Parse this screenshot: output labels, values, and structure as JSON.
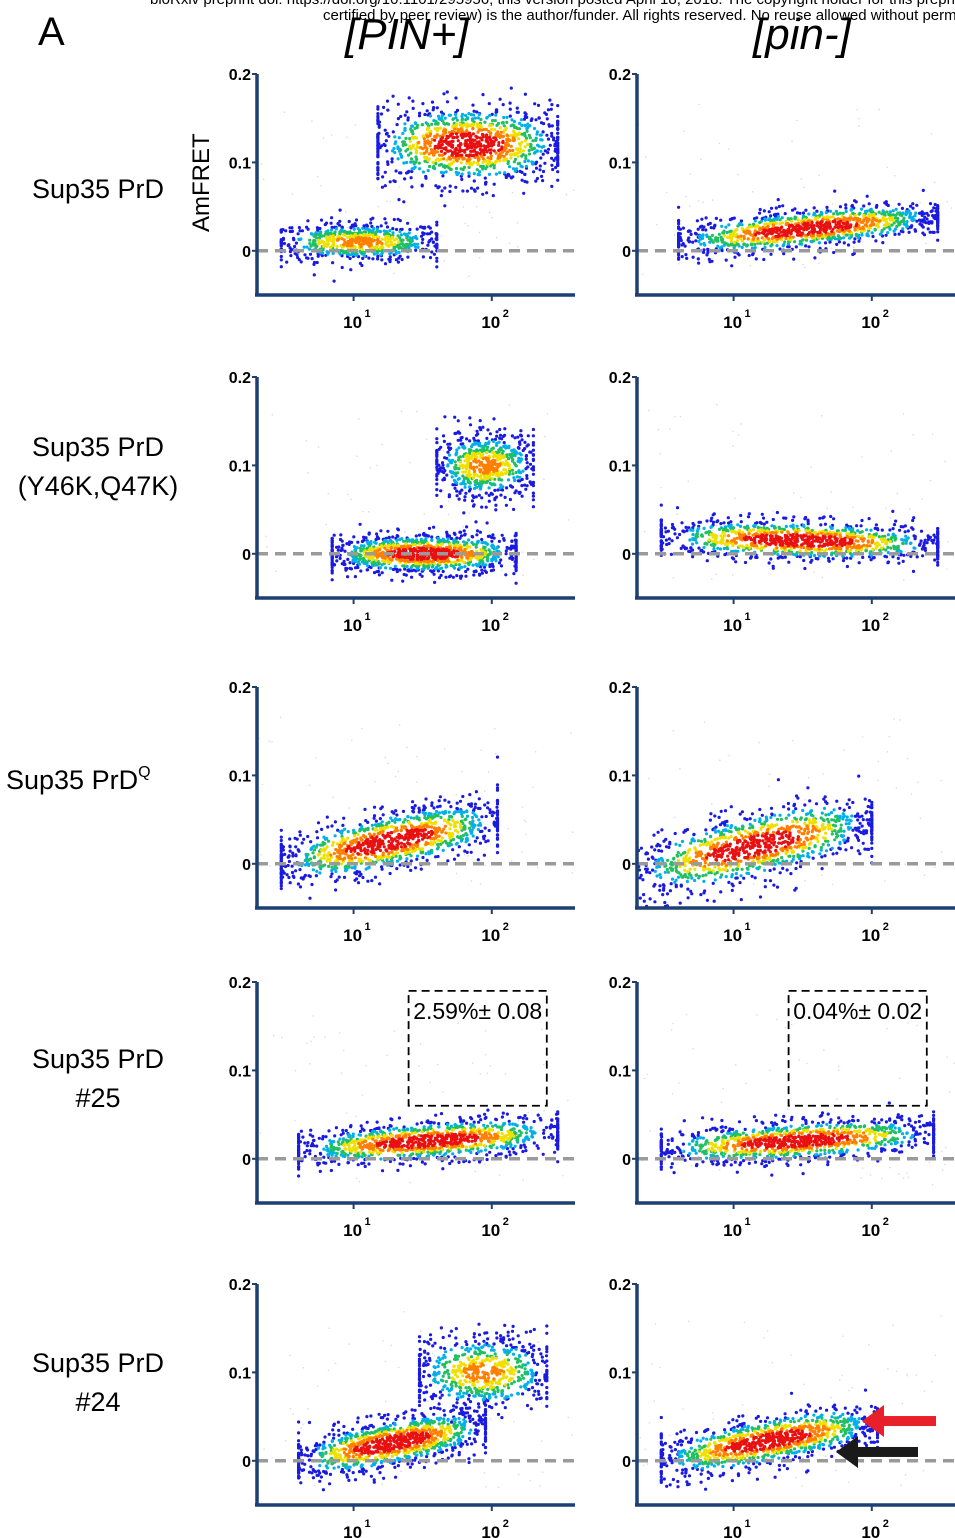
{
  "header": {
    "preprint_line1": "bioRxiv preprint doi: https://doi.org/10.1101/295956; this version posted April 18, 2018. The copyright holder for this preprint (which was not",
    "preprint_line2": "certified by peer review) is the author/funder. All rights reserved. No reuse allowed without permission."
  },
  "panel_letter": "A",
  "columns": [
    "[PIN+]",
    "[pin-]"
  ],
  "y_axis_label": "AmFRET",
  "rows": [
    {
      "label_lines": [
        "Sup35 PrD"
      ],
      "superscript": ""
    },
    {
      "label_lines": [
        "Sup35 PrD",
        "(Y46K,Q47K)"
      ],
      "superscript": ""
    },
    {
      "label_lines": [
        "Sup35 PrD"
      ],
      "superscript": "Q"
    },
    {
      "label_lines": [
        "Sup35 PrD",
        "#25"
      ],
      "superscript": ""
    },
    {
      "label_lines": [
        "Sup35 PrD",
        "#24"
      ],
      "superscript": ""
    }
  ],
  "colors": {
    "axis": "#1d3f73",
    "zero_line": "#9a9a9a",
    "density_scale": [
      "#d8d8f2",
      "#1a1ae0",
      "#00b0e8",
      "#20c060",
      "#f0e000",
      "#ff8000",
      "#e81010"
    ],
    "red_arrow": "#e8202a",
    "black_arrow": "#1a1a1a"
  },
  "chart_data": [
    {
      "type": "scatter",
      "row": 1,
      "column": "[PIN+]",
      "x_scale": "log",
      "xticks": [
        "10^1",
        "10^2"
      ],
      "yticks": [
        "0",
        "0.1",
        "0.2"
      ],
      "ylim": [
        -0.05,
        0.2
      ],
      "populations": [
        {
          "name": "",
          "x_range": [
            3,
            40
          ],
          "y_center": 0.01,
          "y_spread": 0.02,
          "density": "medium"
        },
        {
          "name": "",
          "x_range": [
            15,
            300
          ],
          "y_center": 0.12,
          "y_spread": 0.04,
          "density": "high"
        }
      ]
    },
    {
      "type": "scatter",
      "row": 1,
      "column": "[pin-]",
      "x_scale": "log",
      "xticks": [
        "10^1",
        "10^2"
      ],
      "yticks": [
        "0",
        "0.1",
        "0.2"
      ],
      "ylim": [
        -0.05,
        0.2
      ],
      "populations": [
        {
          "name": "",
          "x_range": [
            4,
            300
          ],
          "y_start": 0.01,
          "y_end": 0.04,
          "y_spread": 0.02,
          "density": "high"
        }
      ]
    },
    {
      "type": "scatter",
      "row": 2,
      "column": "[PIN+]",
      "x_scale": "log",
      "xticks": [
        "10^1",
        "10^2"
      ],
      "yticks": [
        "0",
        "0.1",
        "0.2"
      ],
      "ylim": [
        -0.05,
        0.2
      ],
      "populations": [
        {
          "name": "",
          "x_range": [
            7,
            150
          ],
          "y_center": 0.0,
          "y_spread": 0.02,
          "density": "high"
        },
        {
          "name": "",
          "x_range": [
            40,
            200
          ],
          "y_center": 0.1,
          "y_spread": 0.035,
          "density": "medium"
        }
      ]
    },
    {
      "type": "scatter",
      "row": 2,
      "column": "[pin-]",
      "x_scale": "log",
      "xticks": [
        "10^1",
        "10^2"
      ],
      "yticks": [
        "0",
        "0.1",
        "0.2"
      ],
      "ylim": [
        -0.05,
        0.2
      ],
      "populations": [
        {
          "name": "",
          "x_range": [
            3,
            300
          ],
          "y_start": 0.02,
          "y_end": 0.01,
          "y_spread": 0.02,
          "density": "high"
        }
      ]
    },
    {
      "type": "scatter",
      "row": 3,
      "column": "[PIN+]",
      "x_scale": "log",
      "xticks": [
        "10^1",
        "10^2"
      ],
      "yticks": [
        "0",
        "0.1",
        "0.2"
      ],
      "ylim": [
        -0.05,
        0.2
      ],
      "populations": [
        {
          "name": "",
          "x_range": [
            3,
            110
          ],
          "y_start": 0.0,
          "y_end": 0.05,
          "y_spread": 0.03,
          "density": "high"
        }
      ]
    },
    {
      "type": "scatter",
      "row": 3,
      "column": "[pin-]",
      "x_scale": "log",
      "xticks": [
        "10^1",
        "10^2"
      ],
      "yticks": [
        "0",
        "0.1",
        "0.2"
      ],
      "ylim": [
        -0.05,
        0.2
      ],
      "populations": [
        {
          "name": "",
          "x_range": [
            2,
            100
          ],
          "y_start": -0.01,
          "y_end": 0.05,
          "y_spread": 0.035,
          "density": "high"
        }
      ]
    },
    {
      "type": "scatter",
      "row": 4,
      "column": "[PIN+]",
      "x_scale": "log",
      "xticks": [
        "10^1",
        "10^2"
      ],
      "yticks": [
        "0",
        "0.1",
        "0.2"
      ],
      "ylim": [
        -0.05,
        0.2
      ],
      "annotation": "2.59%± 0.08",
      "gate": {
        "x": [
          25,
          250
        ],
        "y": [
          0.06,
          0.19
        ]
      },
      "populations": [
        {
          "name": "",
          "x_range": [
            4,
            300
          ],
          "y_start": 0.01,
          "y_end": 0.03,
          "y_spread": 0.02,
          "density": "high"
        }
      ]
    },
    {
      "type": "scatter",
      "row": 4,
      "column": "[pin-]",
      "x_scale": "log",
      "xticks": [
        "10^1",
        "10^2"
      ],
      "yticks": [
        "0",
        "0.1",
        "0.2"
      ],
      "ylim": [
        -0.05,
        0.2
      ],
      "annotation": "0.04%± 0.02",
      "gate": {
        "x": [
          25,
          250
        ],
        "y": [
          0.06,
          0.19
        ]
      },
      "populations": [
        {
          "name": "",
          "x_range": [
            3,
            280
          ],
          "y_start": 0.01,
          "y_end": 0.03,
          "y_spread": 0.02,
          "density": "high"
        }
      ]
    },
    {
      "type": "scatter",
      "row": 5,
      "column": "[PIN+]",
      "x_scale": "log",
      "xticks": [
        "10^1",
        "10^2"
      ],
      "yticks": [
        "0",
        "0.1",
        "0.2"
      ],
      "ylim": [
        -0.05,
        0.2
      ],
      "populations": [
        {
          "name": "",
          "x_range": [
            4,
            90
          ],
          "y_start": 0.0,
          "y_end": 0.04,
          "y_spread": 0.025,
          "density": "high"
        },
        {
          "name": "",
          "x_range": [
            30,
            250
          ],
          "y_center": 0.1,
          "y_spread": 0.04,
          "density": "medium"
        }
      ]
    },
    {
      "type": "scatter",
      "row": 5,
      "column": "[pin-]",
      "x_scale": "log",
      "xticks": [
        "10^1",
        "10^2"
      ],
      "yticks": [
        "0",
        "0.1",
        "0.2"
      ],
      "ylim": [
        -0.05,
        0.2
      ],
      "arrows": [
        {
          "color": "red",
          "points_to_y": 0.045
        },
        {
          "color": "black",
          "points_to_y": 0.01
        }
      ],
      "populations": [
        {
          "name": "",
          "x_range": [
            3,
            110
          ],
          "y_start": 0.0,
          "y_end": 0.045,
          "y_spread": 0.025,
          "density": "high"
        }
      ]
    }
  ]
}
